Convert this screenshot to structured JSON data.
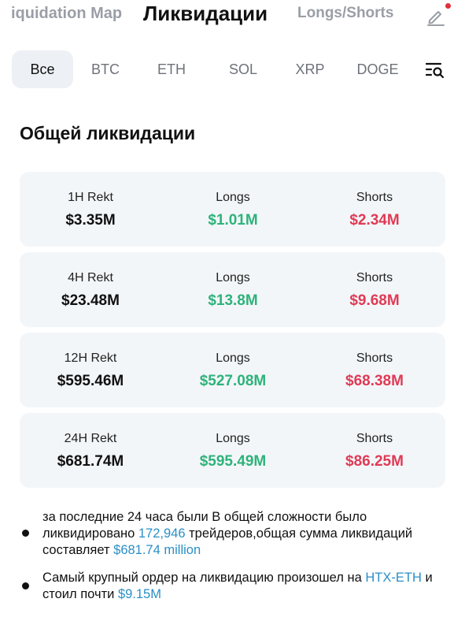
{
  "topnav": {
    "left_tab": "iquidation Map",
    "active_tab": "Ликвидации",
    "right_tab": "Longs/Shorts"
  },
  "filters": [
    "Все",
    "BTC",
    "ETH",
    "SOL",
    "XRP",
    "DOGE"
  ],
  "section_title": "Общей ликвидации",
  "cards": [
    {
      "period": "1H Rekt",
      "total": "$3.35M",
      "longs_label": "Longs",
      "longs": "$1.01M",
      "shorts_label": "Shorts",
      "shorts": "$2.34M"
    },
    {
      "period": "4H Rekt",
      "total": "$23.48M",
      "longs_label": "Longs",
      "longs": "$13.8M",
      "shorts_label": "Shorts",
      "shorts": "$9.68M"
    },
    {
      "period": "12H Rekt",
      "total": "$595.46M",
      "longs_label": "Longs",
      "longs": "$527.08M",
      "shorts_label": "Shorts",
      "shorts": "$68.38M"
    },
    {
      "period": "24H Rekt",
      "total": "$681.74M",
      "longs_label": "Longs",
      "longs": "$595.49M",
      "shorts_label": "Shorts",
      "shorts": "$86.25M"
    }
  ],
  "notes": {
    "n1_a": "за последние 24 часа были В общей сложности было ликвидировано ",
    "n1_traders": "172,946",
    "n1_b": " трейдеров,общая сумма ликвидаций составляет ",
    "n1_amount": "$681.74 million",
    "n2_a": "Самый крупный ордер на ликвидацию произошел на ",
    "n2_exchange": "HTX-ETH",
    "n2_b": " и стоил почти ",
    "n2_amount": "$9.15M"
  },
  "colors": {
    "long": "#2eb37a",
    "short": "#e03a55",
    "link": "#2a8fc7",
    "card_bg": "#f3f6f9"
  },
  "icons": {
    "edit": "edit-pencil-icon",
    "filter": "list-search-icon"
  }
}
